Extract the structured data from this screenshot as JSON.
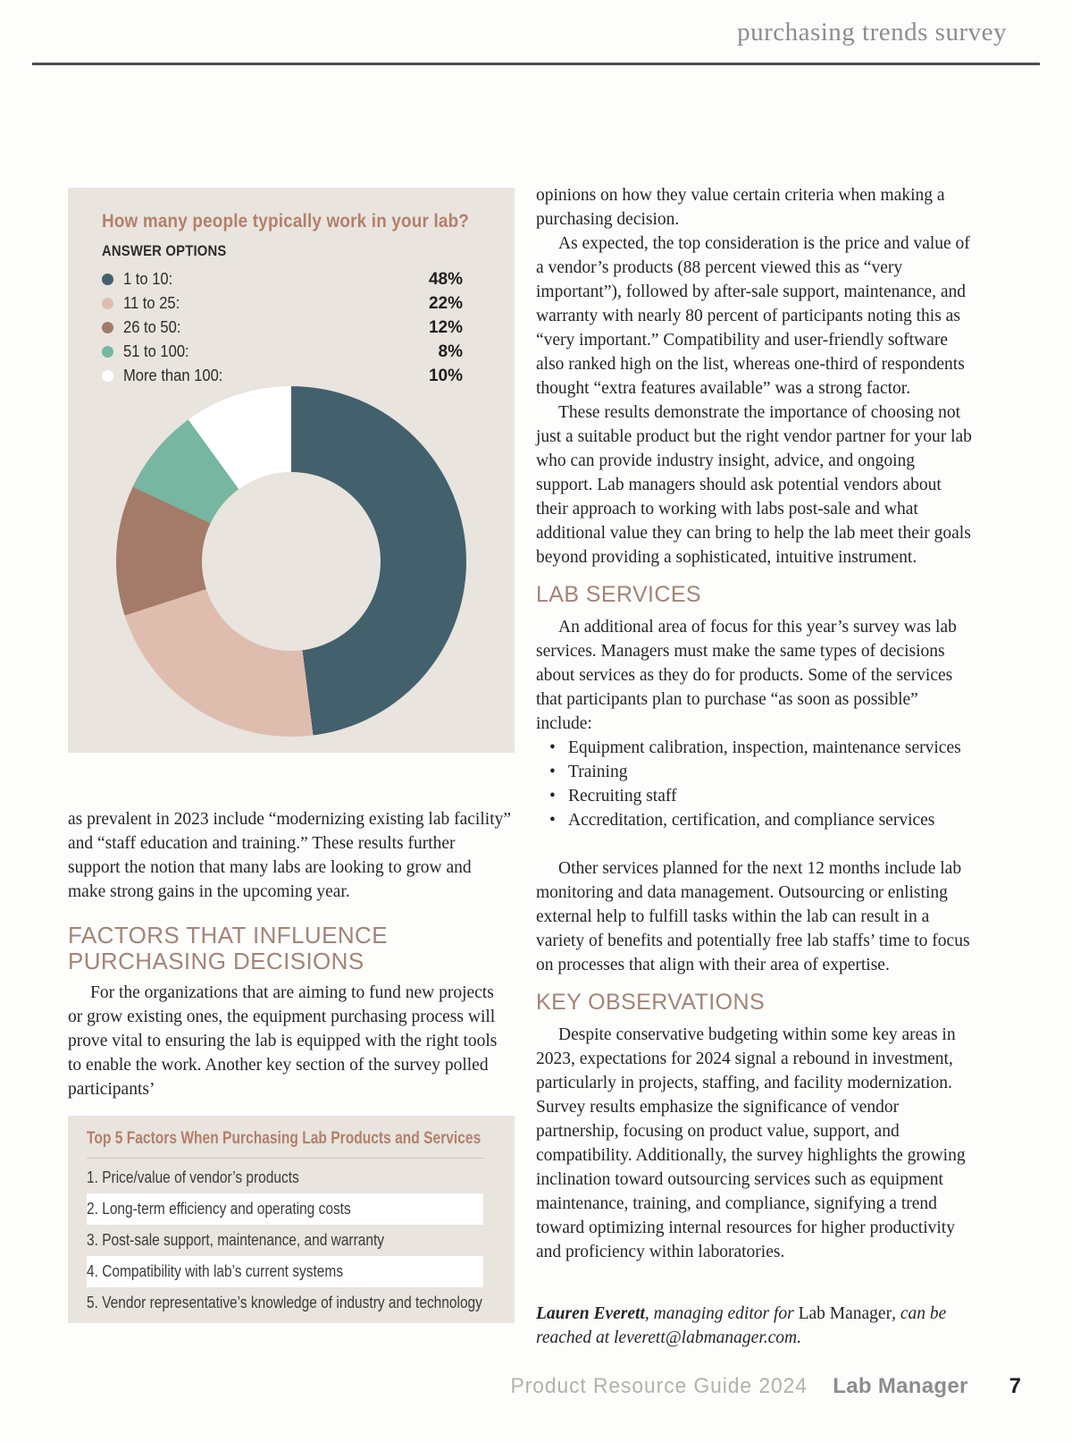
{
  "header": {
    "title": "purchasing trends survey"
  },
  "colors": {
    "panel_bg": "#e9e4de",
    "accent_heading": "#a28577",
    "accent_title": "#b2806a",
    "rule": "#4d4d4d"
  },
  "chart_data": {
    "type": "pie",
    "subtype": "donut",
    "title": "How many people typically work in your lab?",
    "answer_options_label": "ANSWER OPTIONS",
    "categories": [
      "1 to 10:",
      "11 to 25:",
      "26 to 50:",
      "51 to 100:",
      "More than 100:"
    ],
    "values": [
      48,
      22,
      12,
      8,
      10
    ],
    "labels_pct": [
      "48%",
      "22%",
      "12%",
      "8%",
      "10%"
    ],
    "colors": [
      "#43606d",
      "#debdae",
      "#a47a68",
      "#77b6a0",
      "#ffffff"
    ],
    "start_angle_deg": 0,
    "direction": "clockwise",
    "inner_radius_ratio": 0.51,
    "background": "#e9e4de",
    "legend_position": "top-left"
  },
  "left": {
    "para_lead": "as prevalent in 2023 include “modernizing existing lab facility” and “staff education and training.” These results further support the notion that many labs are looking to grow and make strong gains in the upcoming year.",
    "factors_heading": "FACTORS THAT INFLUENCE PURCHASING DECISIONS",
    "factors_para": "For the organizations that are aiming to fund new projects or grow existing ones, the equipment purchasing process will prove vital to ensuring the lab is equipped with the right tools to enable the work. Another key section of the survey polled participants’",
    "top5": {
      "title": "Top 5 Factors When Purchasing Lab Products and Services",
      "items": [
        "1. Price/value of vendor’s products",
        "2. Long-term efficiency and operating costs",
        "3. Post-sale support, maintenance, and warranty",
        "4. Compatibility with lab’s current systems",
        "5. Vendor representative’s knowledge of industry and technology"
      ]
    }
  },
  "right": {
    "para1": "opinions on how they value certain criteria when making a purchasing decision.",
    "para2": "As expected, the top consideration is the price and value of a vendor’s products (88 percent viewed this as “very important”), followed by after-sale support, maintenance, and warranty with nearly 80 percent of participants noting this as “very important.” Compatibility and user-friendly software also ranked high on the list, whereas one-third of respondents thought “extra features available” was a strong factor.",
    "para3": "These results demonstrate the importance of choosing not just a suitable product but the right vendor partner for your lab who can provide industry insight, advice, and ongoing support. Lab managers should ask potential vendors about their approach to working with labs post-sale and what additional value they can bring to help the lab meet their goals beyond providing a sophisticated, intuitive instrument.",
    "lab_services_heading": "LAB SERVICES",
    "lab_services_para": "An additional area of focus for this year’s survey was lab services. Managers must make the same types of decisions about services as they do for products. Some of the services that participants plan to purchase “as soon as possible” include:",
    "bullet_char": "•",
    "bullets": [
      "Equipment calibration, inspection, maintenance services",
      "Training",
      "Recruiting staff",
      "Accreditation, certification, and compliance services"
    ],
    "services_para2": "Other services planned for the next 12 months include lab monitoring and data management. Outsourcing or enlisting external help to fulfill tasks within the lab can result in a variety of benefits and potentially free lab staffs’ time to focus on processes that align with their area of expertise.",
    "key_obs_heading": "KEY OBSERVATIONS",
    "key_obs_para": "Despite conservative budgeting within some key areas in 2023, expectations for 2024 signal a rebound in investment, particularly in projects, staffing, and facility modernization. Survey results emphasize the significance of vendor partnership, focusing on product value, support, and compatibility. Additionally, the survey highlights the growing inclination toward outsourcing services such as equipment maintenance, training, and compliance, signifying a trend toward optimizing internal resources for higher productivity and proficiency within laboratories.",
    "author": {
      "name": "Lauren Everett",
      "role": ", managing editor for ",
      "brand": "Lab Manager",
      "tail": ", can be reached at leverett@labmanager.com."
    }
  },
  "footer": {
    "guide": "Product Resource Guide 2024",
    "brand": "Lab Manager",
    "page_number": "7"
  }
}
